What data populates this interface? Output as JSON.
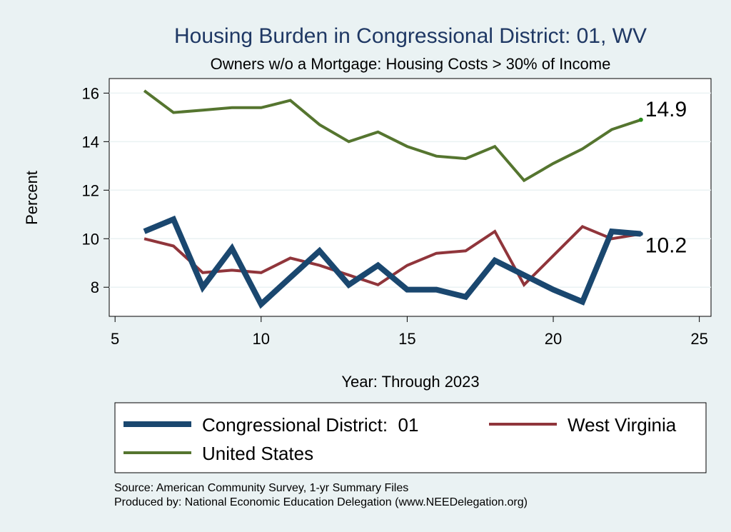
{
  "chart_data": {
    "type": "line",
    "title": "Housing Burden in Congressional District:  01, WV",
    "subtitle": "Owners w/o a Mortgage: Housing Costs > 30% of Income",
    "xlabel": "Year: Through 2023",
    "ylabel": "Percent",
    "xlim": [
      4.8,
      25.4
    ],
    "ylim": [
      6.8,
      16.6
    ],
    "x_ticks": [
      5,
      10,
      15,
      20,
      25
    ],
    "y_ticks": [
      8,
      10,
      12,
      14,
      16
    ],
    "grid": true,
    "legend_position": "bottom",
    "x": [
      6,
      7,
      8,
      9,
      10,
      11,
      12,
      13,
      14,
      15,
      16,
      17,
      18,
      19,
      20,
      21,
      22,
      23
    ],
    "series": [
      {
        "name": "Congressional District:  01",
        "color": "#1a476f",
        "values": [
          10.3,
          10.8,
          8.0,
          9.6,
          7.3,
          8.4,
          9.5,
          8.1,
          8.9,
          7.9,
          7.9,
          7.6,
          9.1,
          8.5,
          7.9,
          7.4,
          10.3,
          10.2
        ],
        "end_label": "10.2"
      },
      {
        "name": "West Virginia",
        "color": "#90353b",
        "values": [
          10.0,
          9.7,
          8.6,
          8.7,
          8.6,
          9.2,
          8.9,
          8.5,
          8.1,
          8.9,
          9.4,
          9.5,
          10.3,
          8.1,
          9.3,
          10.5,
          10.0,
          10.2
        ],
        "end_label": ""
      },
      {
        "name": "United States",
        "color": "#55752f",
        "values": [
          16.1,
          15.2,
          15.3,
          15.4,
          15.4,
          15.7,
          14.7,
          14.0,
          14.4,
          13.8,
          13.4,
          13.3,
          13.8,
          12.4,
          13.1,
          13.7,
          14.5,
          14.9
        ],
        "end_label": "14.9"
      }
    ],
    "notes": [
      "Source: American Community Survey, 1-yr Summary Files",
      "Produced by: National Economic Education Delegation (www.NEEDelegation.org)"
    ]
  }
}
